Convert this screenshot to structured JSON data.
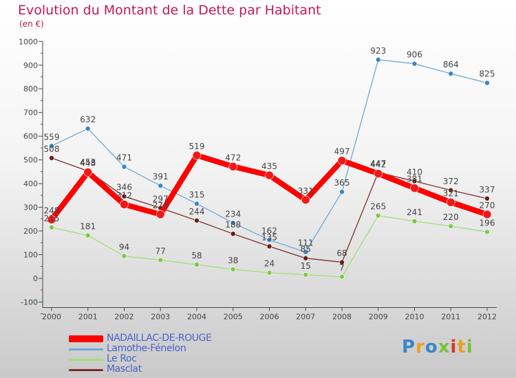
{
  "title": "Evolution du Montant de la Dette par Habitant",
  "subtitle": "(en €)",
  "logo": "Proxiti",
  "chart_data": {
    "type": "line",
    "x": [
      "2000",
      "2001",
      "2002",
      "2003",
      "2004",
      "2005",
      "2006",
      "2007",
      "2008",
      "2009",
      "2010",
      "2011",
      "2012"
    ],
    "ylim": [
      -100,
      1000
    ],
    "yticks": [
      "-100",
      "0",
      "100",
      "200",
      "300",
      "400",
      "500",
      "600",
      "700",
      "800",
      "900",
      "1000"
    ],
    "grid": false,
    "legend": "bottom-left",
    "series": [
      {
        "name": "NADAILLAC-DE-ROUGE",
        "color": "#ff0000",
        "marker": "#ee1a1a",
        "width": 8,
        "values": [
          248,
          448,
          312,
          270,
          519,
          472,
          435,
          331,
          497,
          442,
          381,
          321,
          270
        ]
      },
      {
        "name": "Lamothe-Fénelon",
        "color": "#6ea8d8",
        "marker": "#3a86c8",
        "width": 1.3,
        "values": [
          559,
          632,
          471,
          391,
          315,
          234,
          162,
          111,
          365,
          923,
          906,
          864,
          825
        ]
      },
      {
        "name": "Le Roc",
        "color": "#a3de7a",
        "marker": "#7cc74a",
        "width": 1.3,
        "values": [
          215,
          181,
          94,
          77,
          58,
          38,
          24,
          15,
          7,
          265,
          241,
          220,
          196
        ]
      },
      {
        "name": "Masclat",
        "color": "#7a2c2c",
        "marker": "#6a1a1a",
        "width": 1.3,
        "values": [
          508,
          453,
          346,
          297,
          244,
          188,
          135,
          85,
          68,
          447,
          410,
          372,
          337
        ]
      }
    ]
  }
}
